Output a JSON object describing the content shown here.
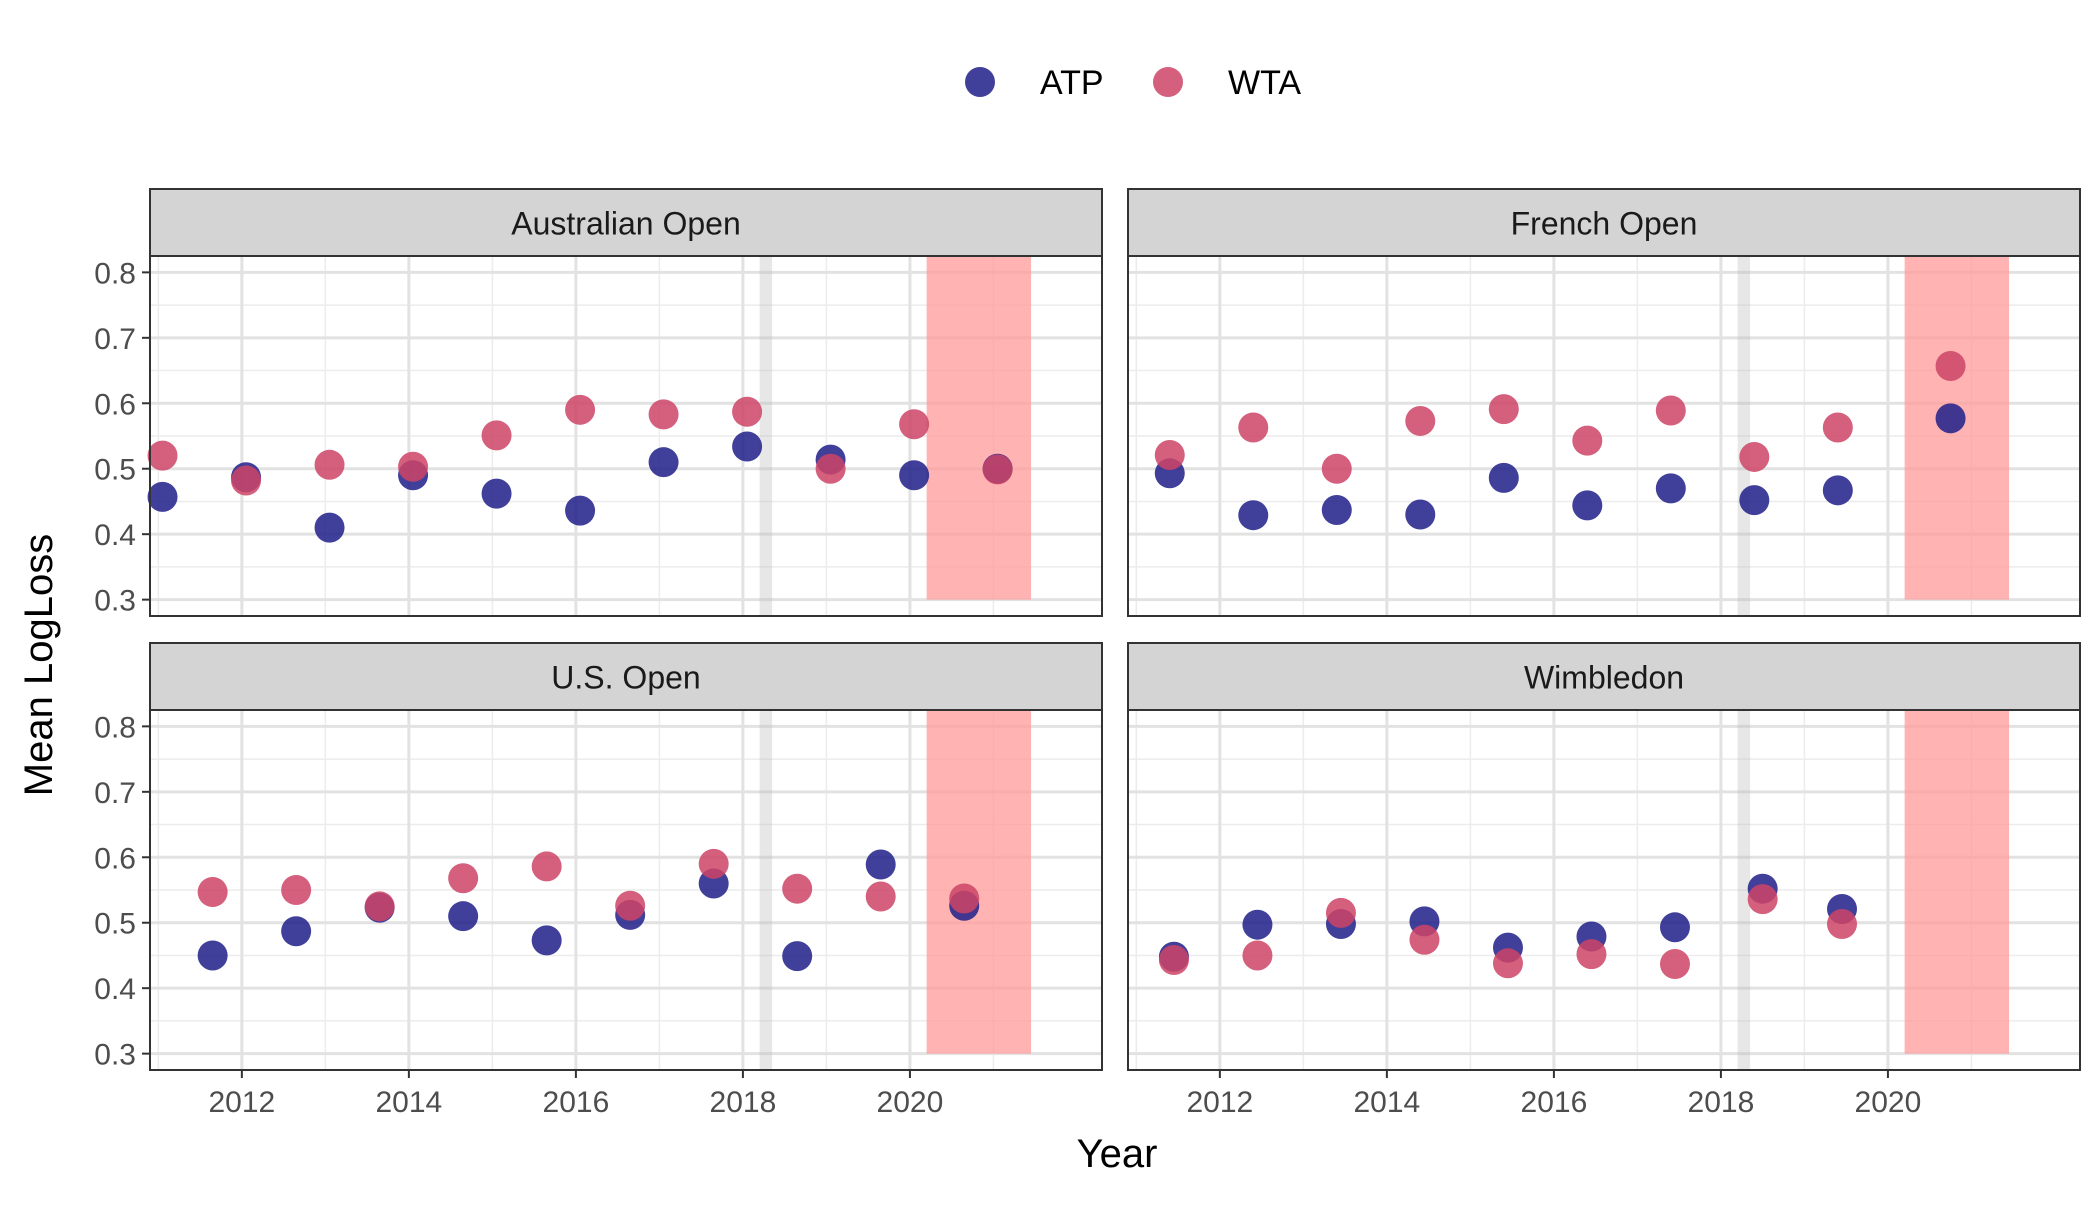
{
  "chart_data": {
    "type": "scatter",
    "xlabel": "Year",
    "ylabel": "Mean LogLoss",
    "xlim": [
      2010.9,
      2022.3
    ],
    "ylim": [
      0.275,
      0.825
    ],
    "x_ticks": [
      2012,
      2014,
      2016,
      2018,
      2020
    ],
    "x_tick_labels": [
      "2012",
      "2014",
      "2016",
      "2018",
      "2020"
    ],
    "y_ticks": [
      0.3,
      0.4,
      0.5,
      0.6,
      0.7,
      0.8
    ],
    "y_tick_labels": [
      "0.3",
      "0.4",
      "0.5",
      "0.6",
      "0.7",
      "0.8"
    ],
    "grid": true,
    "legend": {
      "position": "top",
      "entries": [
        {
          "name": "ATP",
          "color": "#1f1f88"
        },
        {
          "name": "WTA",
          "color": "#cc4466"
        }
      ]
    },
    "shaded_regions": {
      "grey_band": {
        "x": [
          2018.2,
          2018.35
        ],
        "color": "#bbbbbb"
      },
      "red_band": {
        "x": [
          2020.2,
          2021.45
        ],
        "y": [
          0.3,
          0.825
        ],
        "color": "#ff9999"
      }
    },
    "panels": [
      {
        "title": "Australian Open",
        "series": [
          {
            "name": "ATP",
            "points": [
              [
                2011.05,
                0.457
              ],
              [
                2012.05,
                0.487
              ],
              [
                2013.05,
                0.41
              ],
              [
                2014.05,
                0.49
              ],
              [
                2015.05,
                0.462
              ],
              [
                2016.05,
                0.436
              ],
              [
                2017.05,
                0.51
              ],
              [
                2018.05,
                0.534
              ],
              [
                2019.05,
                0.514
              ],
              [
                2020.05,
                0.49
              ],
              [
                2021.05,
                0.5
              ]
            ]
          },
          {
            "name": "WTA",
            "points": [
              [
                2011.05,
                0.52
              ],
              [
                2012.05,
                0.482
              ],
              [
                2013.05,
                0.506
              ],
              [
                2014.05,
                0.503
              ],
              [
                2015.05,
                0.551
              ],
              [
                2016.05,
                0.59
              ],
              [
                2017.05,
                0.583
              ],
              [
                2018.05,
                0.587
              ],
              [
                2019.05,
                0.5
              ],
              [
                2020.05,
                0.568
              ],
              [
                2021.05,
                0.499
              ]
            ]
          }
        ]
      },
      {
        "title": "French Open",
        "series": [
          {
            "name": "ATP",
            "points": [
              [
                2011.4,
                0.493
              ],
              [
                2012.4,
                0.429
              ],
              [
                2013.4,
                0.437
              ],
              [
                2014.4,
                0.43
              ],
              [
                2015.4,
                0.486
              ],
              [
                2016.4,
                0.444
              ],
              [
                2017.4,
                0.47
              ],
              [
                2018.4,
                0.452
              ],
              [
                2019.4,
                0.467
              ],
              [
                2020.75,
                0.577
              ]
            ]
          },
          {
            "name": "WTA",
            "points": [
              [
                2011.4,
                0.521
              ],
              [
                2012.4,
                0.563
              ],
              [
                2013.4,
                0.5
              ],
              [
                2014.4,
                0.573
              ],
              [
                2015.4,
                0.591
              ],
              [
                2016.4,
                0.543
              ],
              [
                2017.4,
                0.589
              ],
              [
                2018.4,
                0.518
              ],
              [
                2019.4,
                0.563
              ],
              [
                2020.75,
                0.657
              ]
            ]
          }
        ]
      },
      {
        "title": "U.S. Open",
        "series": [
          {
            "name": "ATP",
            "points": [
              [
                2011.65,
                0.45
              ],
              [
                2012.65,
                0.487
              ],
              [
                2013.65,
                0.523
              ],
              [
                2014.65,
                0.51
              ],
              [
                2015.65,
                0.473
              ],
              [
                2016.65,
                0.512
              ],
              [
                2017.65,
                0.56
              ],
              [
                2018.65,
                0.449
              ],
              [
                2019.65,
                0.589
              ],
              [
                2020.65,
                0.526
              ]
            ]
          },
          {
            "name": "WTA",
            "points": [
              [
                2011.65,
                0.547
              ],
              [
                2012.65,
                0.55
              ],
              [
                2013.65,
                0.525
              ],
              [
                2014.65,
                0.568
              ],
              [
                2015.65,
                0.586
              ],
              [
                2016.65,
                0.526
              ],
              [
                2017.65,
                0.59
              ],
              [
                2018.65,
                0.552
              ],
              [
                2019.65,
                0.54
              ],
              [
                2020.65,
                0.537
              ]
            ]
          }
        ]
      },
      {
        "title": "Wimbledon",
        "series": [
          {
            "name": "ATP",
            "points": [
              [
                2011.45,
                0.448
              ],
              [
                2012.45,
                0.497
              ],
              [
                2013.45,
                0.498
              ],
              [
                2014.45,
                0.502
              ],
              [
                2015.45,
                0.462
              ],
              [
                2016.45,
                0.479
              ],
              [
                2017.45,
                0.493
              ],
              [
                2018.5,
                0.552
              ],
              [
                2019.45,
                0.521
              ]
            ]
          },
          {
            "name": "WTA",
            "points": [
              [
                2011.45,
                0.443
              ],
              [
                2012.45,
                0.45
              ],
              [
                2013.45,
                0.515
              ],
              [
                2014.45,
                0.474
              ],
              [
                2015.45,
                0.438
              ],
              [
                2016.45,
                0.452
              ],
              [
                2017.45,
                0.437
              ],
              [
                2018.5,
                0.536
              ],
              [
                2019.45,
                0.498
              ]
            ]
          }
        ]
      }
    ]
  }
}
